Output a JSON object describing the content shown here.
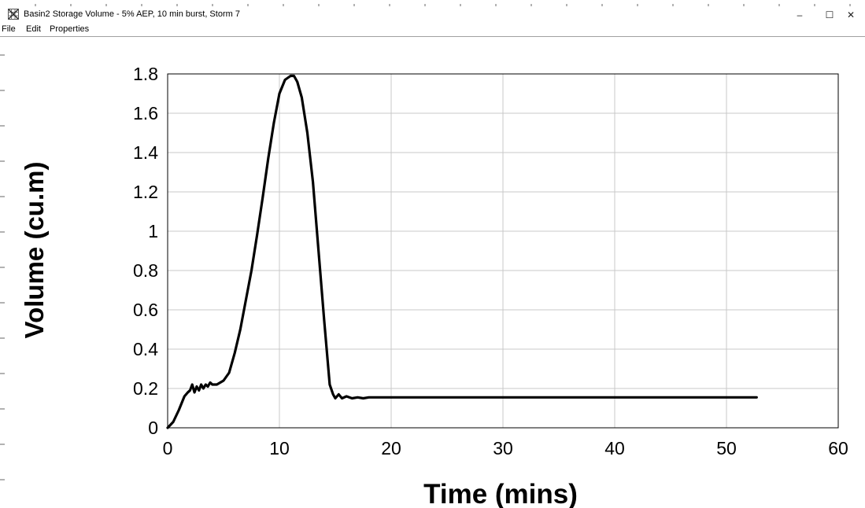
{
  "window": {
    "title": "Basin2 Storage Volume - 5% AEP, 10 min burst, Storm 7",
    "minimize_glyph": "–",
    "maximize_glyph": "☐",
    "close_glyph": "✕",
    "app_icon": "grid-app-icon"
  },
  "menu": {
    "items": [
      {
        "label": "File"
      },
      {
        "label": "Edit"
      },
      {
        "label": "Properties"
      }
    ]
  },
  "chart_data": {
    "type": "line",
    "title": "",
    "xlabel": "Time (mins)",
    "ylabel": "Volume (cu.m)",
    "xlim": [
      0,
      60
    ],
    "ylim": [
      0,
      1.8
    ],
    "x_ticks": [
      "0",
      "10",
      "20",
      "30",
      "40",
      "50",
      "60"
    ],
    "y_ticks": [
      "0",
      "0.2",
      "0.4",
      "0.6",
      "0.8",
      "1",
      "1.2",
      "1.4",
      "1.6",
      "1.8"
    ],
    "grid": true,
    "legend": "none",
    "line_color": "#000000",
    "series": [
      {
        "x": [
          0,
          0.5,
          1.0,
          1.5,
          1.8,
          2.0,
          2.2,
          2.4,
          2.6,
          2.8,
          3.0,
          3.2,
          3.4,
          3.6,
          3.8,
          4.0,
          4.4,
          5.0,
          5.5,
          6.0,
          6.5,
          7.0,
          7.5,
          8.0,
          8.5,
          9.0,
          9.5,
          10.0,
          10.5,
          11.0,
          11.3,
          11.6,
          12.0,
          12.5,
          13.0,
          13.5,
          14.0,
          14.5,
          14.8,
          15.0,
          15.3,
          15.6,
          16.0,
          16.5,
          17.0,
          17.5,
          18.0,
          18.5,
          20,
          30,
          40,
          50,
          52.7
        ],
        "y": [
          0,
          0.03,
          0.09,
          0.16,
          0.18,
          0.19,
          0.22,
          0.18,
          0.21,
          0.19,
          0.22,
          0.2,
          0.22,
          0.21,
          0.23,
          0.22,
          0.22,
          0.24,
          0.28,
          0.38,
          0.5,
          0.65,
          0.8,
          0.98,
          1.17,
          1.37,
          1.55,
          1.7,
          1.77,
          1.79,
          1.79,
          1.76,
          1.68,
          1.5,
          1.25,
          0.9,
          0.55,
          0.22,
          0.17,
          0.15,
          0.17,
          0.15,
          0.16,
          0.15,
          0.155,
          0.15,
          0.155,
          0.155,
          0.155,
          0.155,
          0.155,
          0.155,
          0.155
        ]
      }
    ]
  }
}
